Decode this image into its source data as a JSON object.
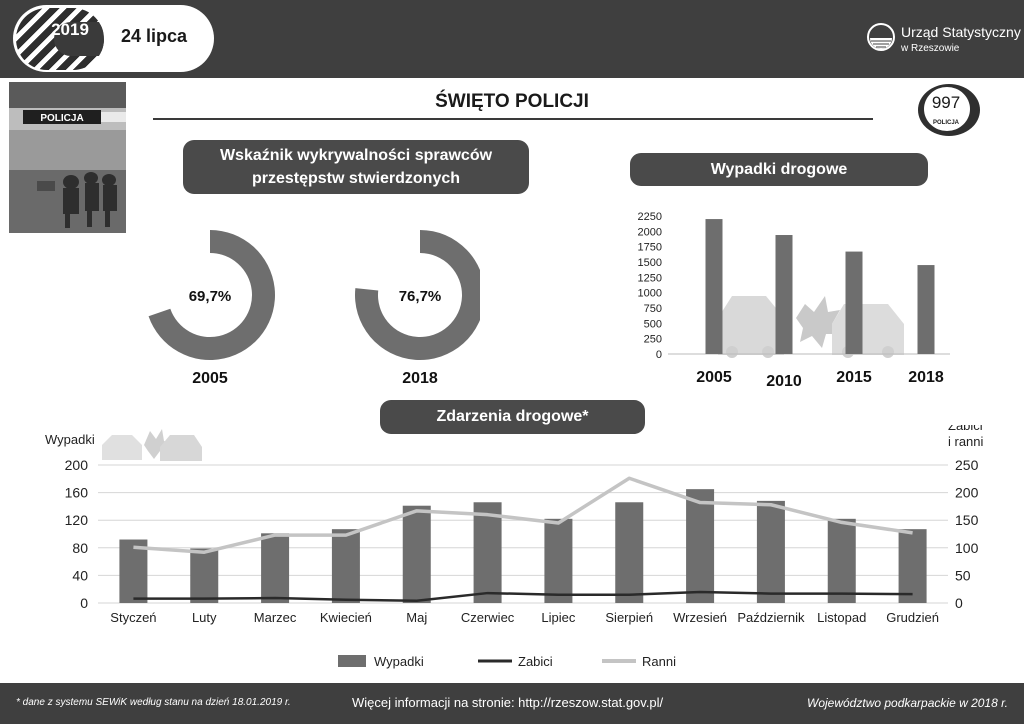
{
  "header": {
    "year": "2019",
    "date": "24 lipca",
    "logo_line1": "Urząd Statystyczny",
    "logo_line2": "w Rzeszowie"
  },
  "title": "ŚWIĘTO POLICJI",
  "badge": {
    "number": "997",
    "caption": "POLICJA"
  },
  "photo": {
    "sign_text": "POLICJA"
  },
  "colors": {
    "dark_bar": "#3f3f3f",
    "heading_bg": "#4a4a4a",
    "donut": "#6e6e6e",
    "bar": "#6e6e6e",
    "line_killed": "#2a2a2a",
    "line_injured": "#c4c4c4",
    "car_silhouette": "#d9d9d9"
  },
  "detection": {
    "heading_line1": "Wskaźnik wykrywalności sprawców",
    "heading_line2": "przestępstw stwierdzonych"
  },
  "roads_heading": "Wypadki drogowe",
  "events_heading": "Zdarzenia drogowe*",
  "footer": {
    "left": "* dane z systemu SEWiK według stanu na dzień 18.01.2019 r.",
    "mid": "Więcej informacji na stronie: http://rzeszow.stat.gov.pl/",
    "right": "Województwo podkarpackie w 2018 r."
  },
  "chart_data": [
    {
      "type": "pie",
      "variant": "donut",
      "slices": [
        {
          "label": "2005",
          "value": 69.7,
          "display": "69,7%"
        },
        {
          "label": "2018",
          "value": 76.7,
          "display": "76,7%"
        }
      ]
    },
    {
      "type": "bar",
      "categories": [
        "2005",
        "2010",
        "2015",
        "2018"
      ],
      "values": [
        2200,
        1940,
        1670,
        1450
      ],
      "yticks": [
        "2250",
        "2000",
        "1750",
        "1500",
        "1250",
        "1000",
        "750",
        "500",
        "250",
        "0"
      ],
      "ylim": [
        0,
        2250
      ],
      "grid": false
    },
    {
      "type": "bar",
      "categories": [
        "Styczeń",
        "Luty",
        "Marzec",
        "Kwiecień",
        "Maj",
        "Czerwiec",
        "Lipiec",
        "Sierpień",
        "Wrzesień",
        "Październik",
        "Listopad",
        "Grudzień"
      ],
      "series": [
        {
          "name": "Wypadki",
          "type": "bar",
          "axis": "left",
          "values": [
            92,
            79,
            101,
            107,
            141,
            146,
            122,
            146,
            165,
            148,
            122,
            107
          ]
        },
        {
          "name": "Zabici",
          "type": "line",
          "axis": "right",
          "values": [
            8,
            8,
            9,
            6,
            4,
            18,
            15,
            15,
            20,
            17,
            17,
            16
          ]
        },
        {
          "name": "Ranni",
          "type": "line",
          "axis": "right",
          "values": [
            101,
            92,
            123,
            123,
            167,
            160,
            145,
            226,
            182,
            178,
            146,
            127
          ]
        }
      ],
      "ylabel": "Wypadki",
      "ylabel_right": [
        "Zabici",
        "i ranni"
      ],
      "yticks_left": [
        "200",
        "160",
        "120",
        "80",
        "40",
        "0"
      ],
      "yticks_right": [
        "250",
        "200",
        "150",
        "100",
        "50",
        "0"
      ],
      "ylim": [
        0,
        200
      ],
      "ylim_right": [
        0,
        250
      ],
      "grid": true,
      "legend_position": "bottom"
    }
  ]
}
